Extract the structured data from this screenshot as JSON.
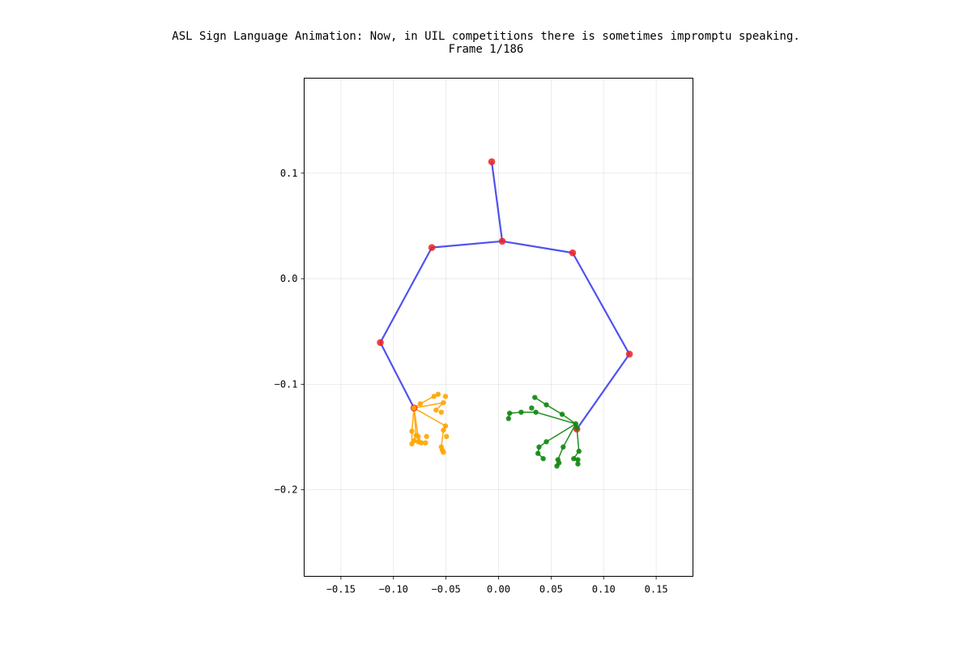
{
  "chart_data": {
    "type": "scatter",
    "title": "ASL Sign Language Animation: Now, in UIL competitions there is sometimes impromptu speaking.",
    "subtitle": "Frame 1/186",
    "xlabel": "",
    "ylabel": "",
    "xlim": [
      -0.185,
      0.185
    ],
    "ylim": [
      -0.282,
      0.19
    ],
    "xticks": [
      -0.15,
      -0.1,
      -0.05,
      0.0,
      0.05,
      0.1,
      0.15
    ],
    "xtick_labels": [
      "−0.15",
      "−0.10",
      "−0.05",
      "0.00",
      "0.05",
      "0.10",
      "0.15"
    ],
    "yticks": [
      0.1,
      0.0,
      -0.1,
      -0.2
    ],
    "ytick_labels": [
      "0.1",
      "0.0",
      "−0.1",
      "−0.2"
    ],
    "grid": true,
    "colors": {
      "pose_line": "#3333ee",
      "pose_joint": "#ee2222",
      "left_hand": "#ffa500",
      "right_hand": "#118811"
    },
    "series": [
      {
        "name": "pose",
        "points": [
          [
            -0.0065,
            0.1108
          ],
          [
            0.0035,
            0.0355
          ],
          [
            -0.0635,
            0.0295
          ],
          [
            0.0705,
            0.0245
          ],
          [
            -0.1125,
            -0.0605
          ],
          [
            0.1245,
            -0.0715
          ],
          [
            -0.0805,
            -0.1225
          ],
          [
            0.0745,
            -0.1425
          ]
        ],
        "edges": [
          [
            0,
            1
          ],
          [
            1,
            2
          ],
          [
            1,
            3
          ],
          [
            2,
            4
          ],
          [
            4,
            6
          ],
          [
            3,
            5
          ],
          [
            5,
            7
          ]
        ]
      },
      {
        "name": "left-hand",
        "points": [
          [
            -0.0805,
            -0.1225
          ],
          [
            -0.0745,
            -0.1185
          ],
          [
            -0.0615,
            -0.1115
          ],
          [
            -0.0575,
            -0.1095
          ],
          [
            -0.0505,
            -0.1115
          ],
          [
            -0.0525,
            -0.1175
          ],
          [
            -0.0595,
            -0.1245
          ],
          [
            -0.0545,
            -0.1265
          ],
          [
            -0.0505,
            -0.1395
          ],
          [
            -0.0525,
            -0.1435
          ],
          [
            -0.0495,
            -0.1495
          ],
          [
            -0.0545,
            -0.1595
          ],
          [
            -0.0535,
            -0.1625
          ],
          [
            -0.0525,
            -0.1645
          ],
          [
            -0.0825,
            -0.1445
          ],
          [
            -0.0785,
            -0.1485
          ],
          [
            -0.0765,
            -0.1495
          ],
          [
            -0.0685,
            -0.1495
          ],
          [
            -0.0805,
            -0.1535
          ],
          [
            -0.0825,
            -0.1565
          ],
          [
            -0.0765,
            -0.1545
          ],
          [
            -0.0735,
            -0.1555
          ],
          [
            -0.0695,
            -0.1555
          ]
        ],
        "edges": [
          [
            0,
            1
          ],
          [
            1,
            2
          ],
          [
            2,
            3
          ],
          [
            0,
            5
          ],
          [
            5,
            6
          ],
          [
            0,
            8
          ],
          [
            8,
            9
          ],
          [
            9,
            11
          ],
          [
            11,
            12
          ],
          [
            0,
            14
          ],
          [
            14,
            19
          ],
          [
            0,
            15
          ],
          [
            15,
            18
          ],
          [
            0,
            16
          ],
          [
            16,
            20
          ],
          [
            16,
            21
          ]
        ]
      },
      {
        "name": "right-hand",
        "points": [
          [
            0.0735,
            -0.1375
          ],
          [
            0.0605,
            -0.1285
          ],
          [
            0.0455,
            -0.1195
          ],
          [
            0.0345,
            -0.1125
          ],
          [
            0.0315,
            -0.1225
          ],
          [
            0.0355,
            -0.1265
          ],
          [
            0.0215,
            -0.1265
          ],
          [
            0.0105,
            -0.1275
          ],
          [
            0.0095,
            -0.1325
          ],
          [
            0.0455,
            -0.1545
          ],
          [
            0.0385,
            -0.1595
          ],
          [
            0.0375,
            -0.1655
          ],
          [
            0.0425,
            -0.1705
          ],
          [
            0.0615,
            -0.1595
          ],
          [
            0.0565,
            -0.1715
          ],
          [
            0.0575,
            -0.1745
          ],
          [
            0.0555,
            -0.1775
          ],
          [
            0.0745,
            -0.1415
          ],
          [
            0.0765,
            -0.1635
          ],
          [
            0.0715,
            -0.1705
          ],
          [
            0.0755,
            -0.1715
          ],
          [
            0.0755,
            -0.1755
          ]
        ],
        "edges": [
          [
            0,
            1
          ],
          [
            1,
            2
          ],
          [
            2,
            3
          ],
          [
            0,
            5
          ],
          [
            5,
            6
          ],
          [
            6,
            7
          ],
          [
            7,
            8
          ],
          [
            0,
            9
          ],
          [
            9,
            10
          ],
          [
            10,
            11
          ],
          [
            11,
            12
          ],
          [
            0,
            13
          ],
          [
            13,
            14
          ],
          [
            14,
            15
          ],
          [
            15,
            16
          ],
          [
            0,
            17
          ],
          [
            17,
            18
          ],
          [
            18,
            19
          ],
          [
            19,
            20
          ],
          [
            20,
            21
          ]
        ]
      }
    ]
  }
}
